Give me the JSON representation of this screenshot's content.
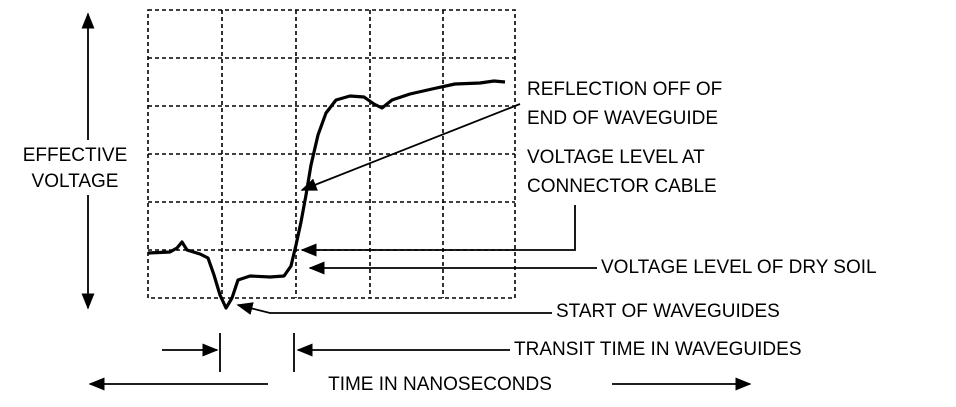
{
  "annotations": {
    "effective_voltage": [
      "EFFECTIVE",
      "VOLTAGE"
    ],
    "reflection": [
      "REFLECTION OFF OF",
      "END OF WAVEGUIDE"
    ],
    "connector": [
      "VOLTAGE LEVEL AT",
      "CONNECTOR CABLE"
    ],
    "dry_soil": "VOLTAGE LEVEL OF DRY SOIL",
    "start": "START OF WAVEGUIDES",
    "transit": "TRANSIT TIME IN WAVEGUIDES",
    "time": "TIME IN NANOSECONDS"
  }
}
